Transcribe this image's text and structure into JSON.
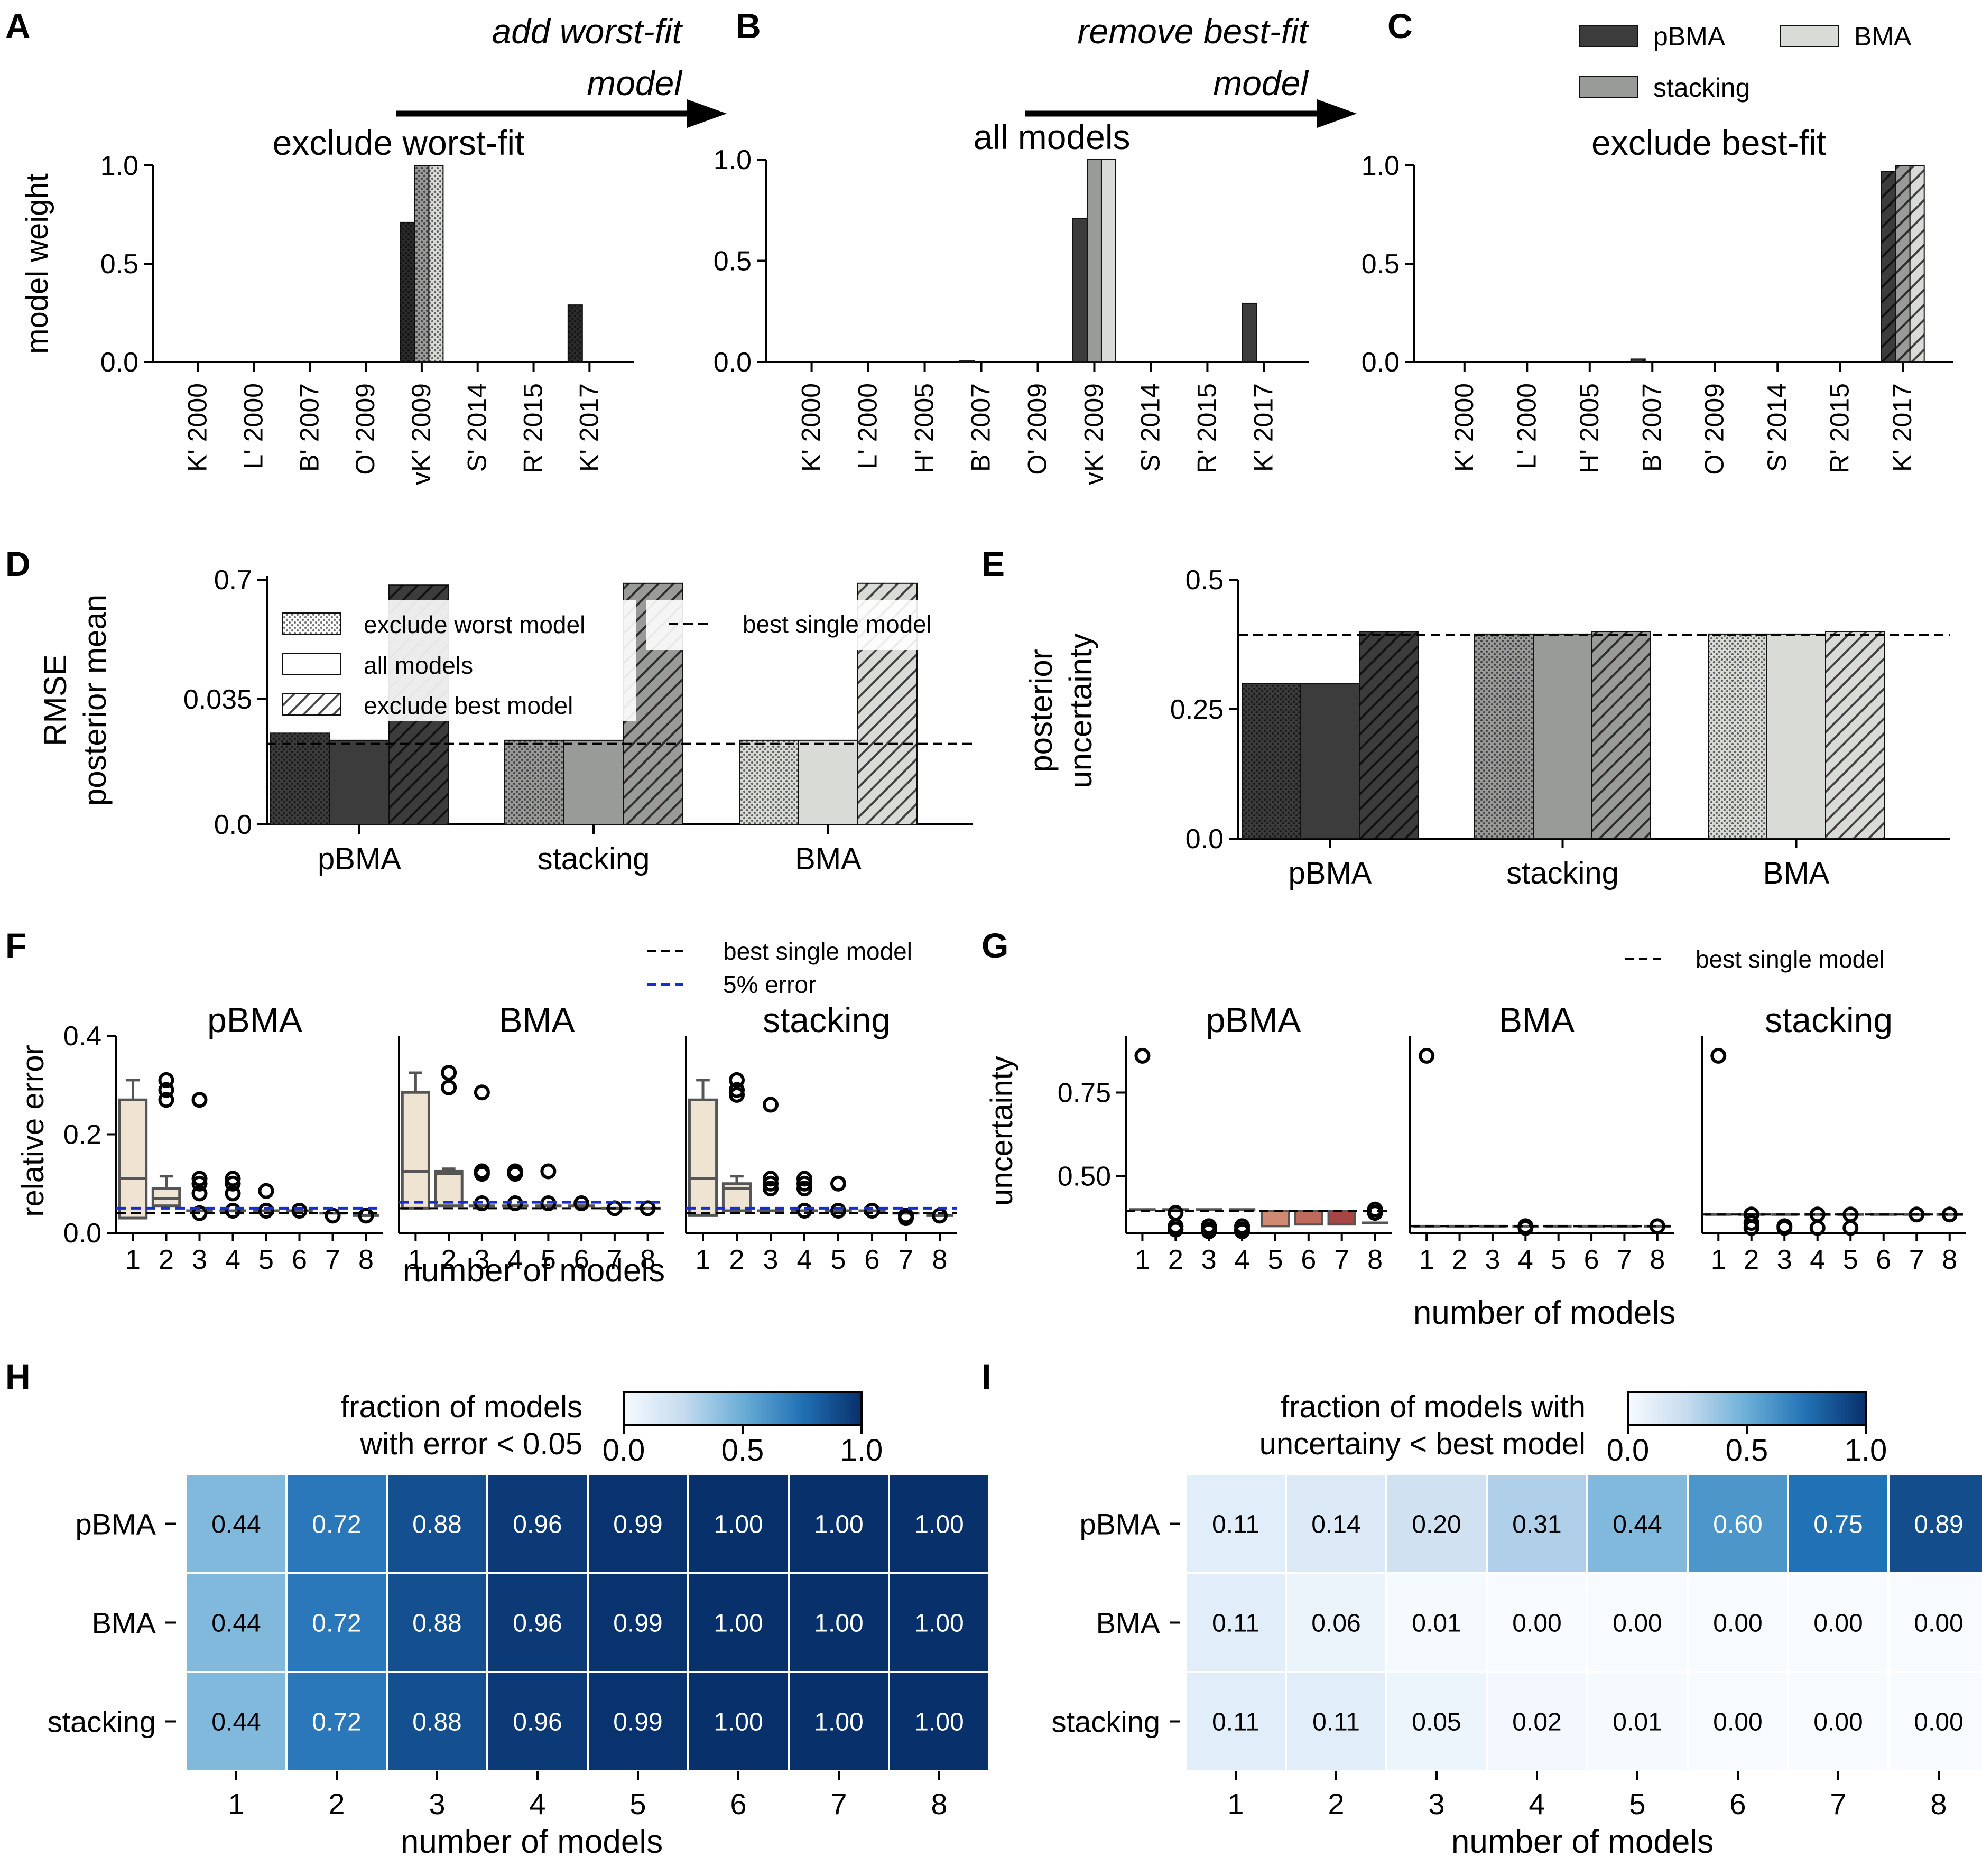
{
  "colors": {
    "pBMA": "#3c3c3c",
    "stacking": "#999b98",
    "BMA": "#d9dcd6",
    "worst": "#2b2b2b",
    "box": "#efe3d2",
    "blue": "#1a2bd6",
    "heat_lo": "#f7fbff",
    "heat_hi": "#08306b",
    "red1": "#d08a74",
    "red2": "#c06a5e",
    "red3": "#a84444"
  },
  "panels": {
    "A": "A",
    "B": "B",
    "C": "C",
    "D": "D",
    "E": "E",
    "F": "F",
    "G": "G",
    "H": "H",
    "I": "I"
  },
  "arrows": {
    "a1": "add worst-fit",
    "a2": "model",
    "b1": "remove best-fit",
    "b2": "model"
  },
  "chart_data": [
    {
      "id": "A",
      "type": "bar",
      "title": "exclude worst-fit",
      "ylabel": "model weight",
      "ylim": [
        0,
        1.0
      ],
      "yticks": [
        "0.0",
        "0.5",
        "1.0"
      ],
      "categories": [
        "K' 2000",
        "L' 2000",
        "B' 2007",
        "O' 2009",
        "vK' 2009",
        "S' 2014",
        "R' 2015",
        "K' 2017"
      ],
      "series": [
        {
          "name": "pBMA",
          "values": [
            0,
            0,
            0,
            0,
            0.71,
            0,
            0,
            0.29
          ]
        },
        {
          "name": "stacking",
          "values": [
            0,
            0,
            0,
            0,
            1.0,
            0,
            0,
            0
          ]
        },
        {
          "name": "BMA",
          "values": [
            0,
            0,
            0,
            0,
            1.0,
            0,
            0,
            0
          ]
        }
      ]
    },
    {
      "id": "B",
      "type": "bar",
      "title": "all models",
      "ylim": [
        0,
        1.0
      ],
      "yticks": [
        "0.0",
        "0.5",
        "1.0"
      ],
      "categories": [
        "K' 2000",
        "L' 2000",
        "H' 2005",
        "B' 2007",
        "O' 2009",
        "vK' 2009",
        "S' 2014",
        "R' 2015",
        "K' 2017"
      ],
      "series": [
        {
          "name": "pBMA",
          "values": [
            0,
            0,
            0,
            0.005,
            0,
            0.71,
            0,
            0,
            0.29
          ]
        },
        {
          "name": "stacking",
          "values": [
            0,
            0,
            0,
            0,
            0,
            1.0,
            0,
            0,
            0
          ]
        },
        {
          "name": "BMA",
          "values": [
            0,
            0,
            0,
            0,
            0,
            1.0,
            0,
            0,
            0
          ]
        }
      ]
    },
    {
      "id": "C",
      "type": "bar",
      "title": "exclude best-fit",
      "ylim": [
        0,
        1.0
      ],
      "yticks": [
        "0.0",
        "0.5",
        "1.0"
      ],
      "categories": [
        "K' 2000",
        "L' 2000",
        "H' 2005",
        "B' 2007",
        "O' 2009",
        "S' 2014",
        "R' 2015",
        "K' 2017"
      ],
      "series": [
        {
          "name": "pBMA",
          "values": [
            0,
            0,
            0,
            0.015,
            0,
            0,
            0,
            0.97
          ]
        },
        {
          "name": "stacking",
          "values": [
            0,
            0,
            0,
            0,
            0,
            0,
            0,
            1.0
          ]
        },
        {
          "name": "BMA",
          "values": [
            0,
            0,
            0,
            0,
            0,
            0,
            0,
            1.0
          ]
        }
      ],
      "legend": [
        "pBMA",
        "stacking",
        "BMA"
      ]
    },
    {
      "id": "D",
      "type": "bar",
      "ylabel1": "RMSE",
      "ylabel2": "posterior mean",
      "yticks": [
        "0.0",
        "0.035",
        "0.7"
      ],
      "categories": [
        "pBMA",
        "stacking",
        "BMA"
      ],
      "series": [
        {
          "name": "exclude worst model",
          "values": [
            0.0255,
            0.0235,
            0.0235
          ]
        },
        {
          "name": "all models",
          "values": [
            0.0235,
            0.0235,
            0.0235
          ]
        },
        {
          "name": "exclude best model",
          "values": [
            0.67,
            0.68,
            0.68
          ]
        }
      ],
      "reference": {
        "name": "best single model",
        "value": 0.0225
      },
      "legend": [
        "exclude worst model",
        "all models",
        "exclude best model"
      ]
    },
    {
      "id": "E",
      "type": "bar",
      "ylabel1": "posterior",
      "ylabel2": "uncertainty",
      "ylim": [
        0,
        0.5
      ],
      "yticks": [
        "0.0",
        "0.25",
        "0.5"
      ],
      "categories": [
        "pBMA",
        "stacking",
        "BMA"
      ],
      "series": [
        {
          "name": "exclude worst model",
          "values": [
            0.3,
            0.395,
            0.395
          ]
        },
        {
          "name": "all models",
          "values": [
            0.3,
            0.395,
            0.395
          ]
        },
        {
          "name": "exclude best model",
          "values": [
            0.4,
            0.4,
            0.4
          ]
        }
      ],
      "reference": {
        "name": "best single model",
        "value": 0.393
      }
    },
    {
      "id": "F",
      "type": "box",
      "ylabel": "relative error",
      "xlabel": "number of models",
      "ylim": [
        0,
        0.4
      ],
      "yticks": [
        "0.0",
        "0.2",
        "0.4"
      ],
      "x": [
        "1",
        "2",
        "3",
        "4",
        "5",
        "6",
        "7",
        "8"
      ],
      "subplots": [
        {
          "title": "pBMA",
          "q1": [
            0.03,
            0.055,
            0.045,
            0.045,
            0.045,
            0.045,
            0.04,
            0.035
          ],
          "med": [
            0.11,
            0.07,
            0.045,
            0.045,
            0.045,
            0.045,
            0.04,
            0.035
          ],
          "q3": [
            0.27,
            0.09,
            0.045,
            0.045,
            0.045,
            0.045,
            0.04,
            0.035
          ],
          "whisk": [
            0.31,
            0.115,
            0.045,
            0.045,
            0.045,
            0.045,
            0.04,
            0.035
          ],
          "outliers": [
            [],
            [
              0.31,
              0.29,
              0.27
            ],
            [
              0.27,
              0.11,
              0.1,
              0.08,
              0.04
            ],
            [
              0.11,
              0.1,
              0.08,
              0.045
            ],
            [
              0.085,
              0.045
            ],
            [
              0.045
            ],
            [
              0.035
            ],
            [
              0.035
            ]
          ],
          "best": 0.04,
          "err": 0.05
        },
        {
          "title": "BMA",
          "q1": [
            0.05,
            0.055,
            0.055,
            0.055,
            0.055,
            0.055,
            0.05,
            0.05
          ],
          "med": [
            0.125,
            0.12,
            0.055,
            0.055,
            0.055,
            0.055,
            0.05,
            0.05
          ],
          "q3": [
            0.285,
            0.125,
            0.055,
            0.055,
            0.055,
            0.055,
            0.05,
            0.05
          ],
          "whisk": [
            0.325,
            0.13,
            0.055,
            0.055,
            0.055,
            0.055,
            0.05,
            0.05
          ],
          "outliers": [
            [],
            [
              0.325,
              0.295
            ],
            [
              0.285,
              0.125,
              0.12,
              0.06
            ],
            [
              0.125,
              0.12,
              0.06
            ],
            [
              0.125,
              0.06
            ],
            [
              0.06
            ],
            [
              0.05
            ],
            [
              0.05
            ]
          ],
          "best": 0.05,
          "err": 0.062
        },
        {
          "title": "stacking",
          "q1": [
            0.035,
            0.045,
            0.045,
            0.045,
            0.045,
            0.045,
            0.04,
            0.035
          ],
          "med": [
            0.11,
            0.09,
            0.045,
            0.045,
            0.045,
            0.045,
            0.04,
            0.035
          ],
          "q3": [
            0.27,
            0.1,
            0.045,
            0.045,
            0.045,
            0.045,
            0.04,
            0.035
          ],
          "whisk": [
            0.31,
            0.115,
            0.045,
            0.045,
            0.045,
            0.045,
            0.04,
            0.035
          ],
          "outliers": [
            [],
            [
              0.31,
              0.29,
              0.28
            ],
            [
              0.26,
              0.11,
              0.1,
              0.09
            ],
            [
              0.11,
              0.1,
              0.09,
              0.045
            ],
            [
              0.1,
              0.045
            ],
            [
              0.045
            ],
            [
              0.035,
              0.03
            ],
            [
              0.035
            ]
          ],
          "best": 0.04,
          "err": 0.05
        }
      ],
      "legend": [
        "best single model",
        "5% error"
      ]
    },
    {
      "id": "G",
      "type": "box",
      "ylabel": "uncertainty",
      "xlabel": "number of models",
      "ylim": [
        0.33,
        0.92
      ],
      "yticks": [
        "0.50",
        "0.75"
      ],
      "x": [
        "1",
        "2",
        "3",
        "4",
        "5",
        "6",
        "7",
        "8"
      ],
      "subplots": [
        {
          "title": "pBMA",
          "outliers": [
            [
              0.86
            ],
            [
              0.39,
              0.35,
              0.34
            ],
            [
              0.35,
              0.34,
              0.335
            ],
            [
              0.35,
              0.34,
              0.335
            ],
            [],
            [],
            [],
            [
              0.4,
              0.39
            ]
          ],
          "boxes": [
            [
              0.4,
              0.4
            ],
            [
              0.4,
              0.4
            ],
            [
              0.4,
              0.4
            ],
            [
              0.4,
              0.4
            ],
            [
              0.35,
              0.395
            ],
            [
              0.355,
              0.395
            ],
            [
              0.355,
              0.395
            ],
            [
              0.36,
              0.36
            ]
          ],
          "best": 0.395
        },
        {
          "title": "BMA",
          "outliers": [
            [
              0.86
            ],
            [],
            [],
            [
              0.35,
              0.345
            ],
            [],
            [],
            [],
            [
              0.35
            ]
          ],
          "boxes": [
            [
              0.35,
              0.35
            ],
            [
              0.35,
              0.35
            ],
            [
              0.35,
              0.35
            ],
            [
              0.35,
              0.35
            ],
            [
              0.35,
              0.35
            ],
            [
              0.35,
              0.35
            ],
            [
              0.35,
              0.35
            ],
            [
              0.35,
              0.35
            ]
          ],
          "best": 0.35
        },
        {
          "title": "stacking",
          "outliers": [
            [
              0.86
            ],
            [
              0.385,
              0.36,
              0.345
            ],
            [
              0.35,
              0.345
            ],
            [
              0.385,
              0.345
            ],
            [
              0.385,
              0.345
            ],
            [],
            [
              0.385
            ],
            [
              0.385
            ]
          ],
          "boxes": [
            [
              0.385,
              0.385
            ],
            [
              0.385,
              0.385
            ],
            [
              0.385,
              0.385
            ],
            [
              0.385,
              0.385
            ],
            [
              0.385,
              0.385
            ],
            [
              0.385,
              0.385
            ],
            [
              0.385,
              0.385
            ],
            [
              0.385,
              0.385
            ]
          ],
          "best": 0.385
        }
      ],
      "legend": [
        "best single model"
      ]
    },
    {
      "id": "H",
      "type": "heatmap",
      "title1": "fraction of models",
      "title2": "with error < 0.05",
      "xlabel": "number of models",
      "rows": [
        "pBMA",
        "BMA",
        "stacking"
      ],
      "cols": [
        "1",
        "2",
        "3",
        "4",
        "5",
        "6",
        "7",
        "8"
      ],
      "values": [
        [
          0.44,
          0.72,
          0.88,
          0.96,
          0.99,
          1.0,
          1.0,
          1.0
        ],
        [
          0.44,
          0.72,
          0.88,
          0.96,
          0.99,
          1.0,
          1.0,
          1.0
        ],
        [
          0.44,
          0.72,
          0.88,
          0.96,
          0.99,
          1.0,
          1.0,
          1.0
        ]
      ],
      "labels": [
        [
          "0.44",
          "0.72",
          "0.88",
          "0.96",
          "0.99",
          "1.00",
          "1.00",
          "1.00"
        ],
        [
          "0.44",
          "0.72",
          "0.88",
          "0.96",
          "0.99",
          "1.00",
          "1.00",
          "1.00"
        ],
        [
          "0.44",
          "0.72",
          "0.88",
          "0.96",
          "0.99",
          "1.00",
          "1.00",
          "1.00"
        ]
      ],
      "cbar": [
        "0.0",
        "0.5",
        "1.0"
      ]
    },
    {
      "id": "I",
      "type": "heatmap",
      "title1": "fraction of models with",
      "title2": "uncertainy <  best model",
      "xlabel": "number of models",
      "rows": [
        "pBMA",
        "BMA",
        "stacking"
      ],
      "cols": [
        "1",
        "2",
        "3",
        "4",
        "5",
        "6",
        "7",
        "8"
      ],
      "values": [
        [
          0.11,
          0.14,
          0.2,
          0.31,
          0.44,
          0.6,
          0.75,
          0.89
        ],
        [
          0.11,
          0.06,
          0.01,
          0.0,
          0.0,
          0.0,
          0.0,
          0.0
        ],
        [
          0.11,
          0.11,
          0.05,
          0.02,
          0.01,
          0.0,
          0.0,
          0.0
        ]
      ],
      "labels": [
        [
          "0.11",
          "0.14",
          "0.20",
          "0.31",
          "0.44",
          "0.60",
          "0.75",
          "0.89"
        ],
        [
          "0.11",
          "0.06",
          "0.01",
          "0.00",
          "0.00",
          "0.00",
          "0.00",
          "0.00"
        ],
        [
          "0.11",
          "0.11",
          "0.05",
          "0.02",
          "0.01",
          "0.00",
          "0.00",
          "0.00"
        ]
      ],
      "cbar": [
        "0.0",
        "0.5",
        "1.0"
      ]
    }
  ]
}
